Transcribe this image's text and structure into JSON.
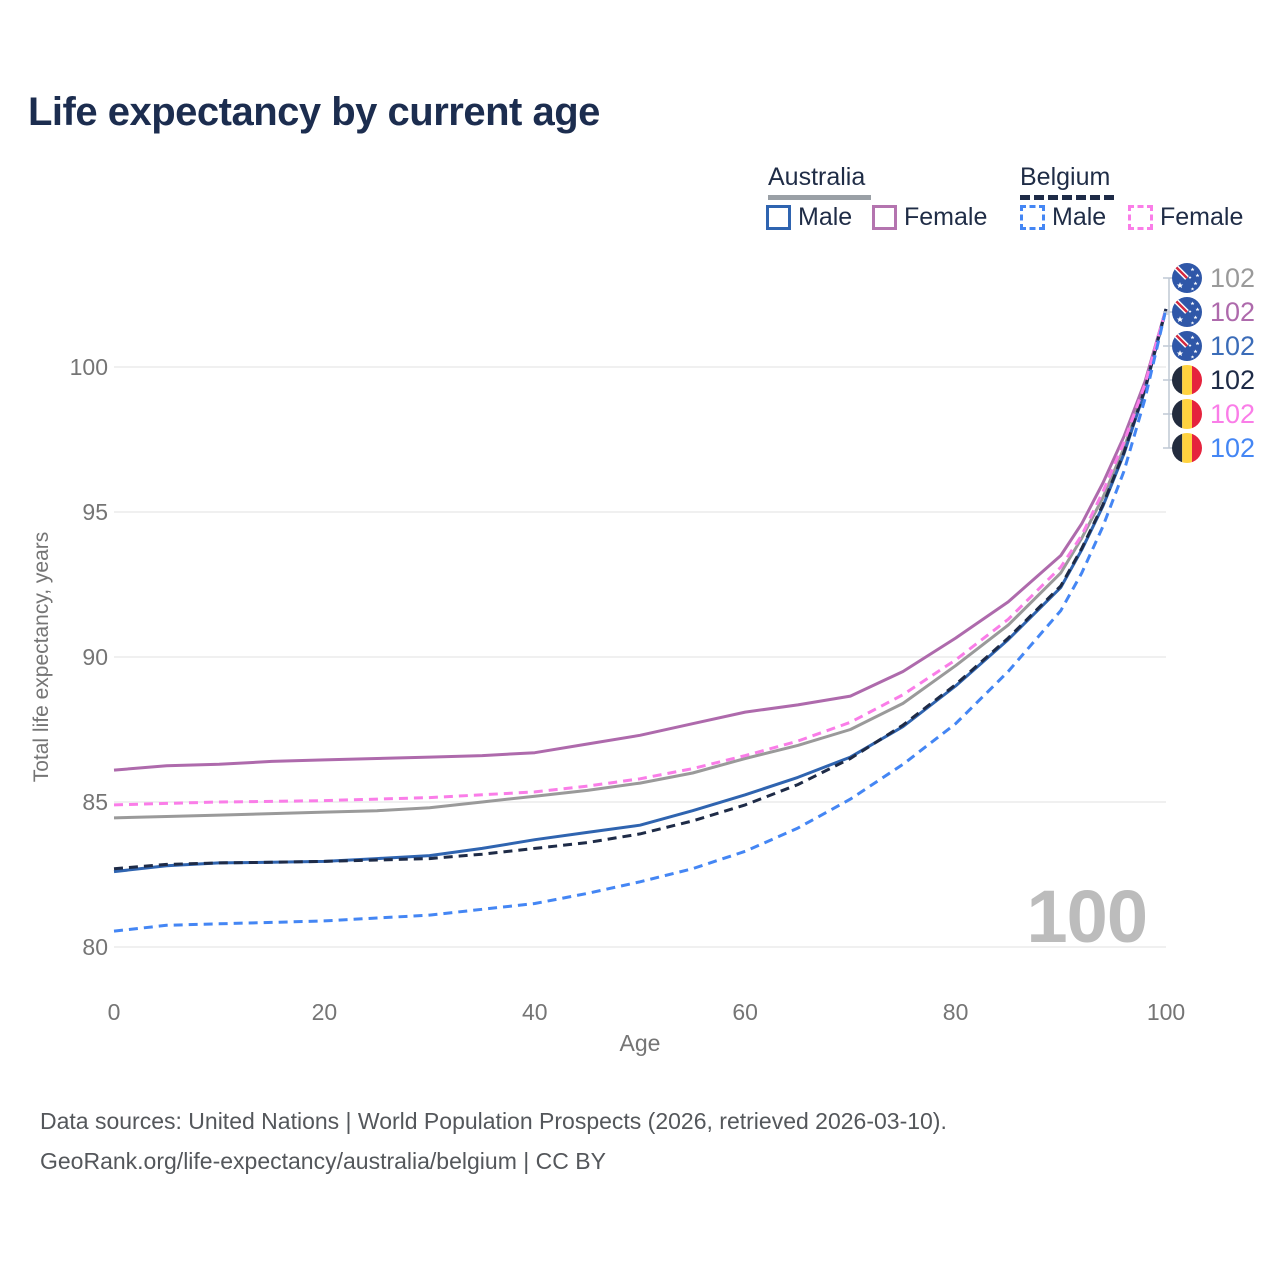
{
  "title": "Life expectancy by current age",
  "legend": {
    "groups": [
      {
        "label": "Australia",
        "line_style": "solid",
        "underline_color": "#9aa0a6",
        "items": [
          {
            "label": "Male",
            "color": "#2f64b0",
            "dash": false
          },
          {
            "label": "Female",
            "color": "#b474af",
            "dash": false
          }
        ]
      },
      {
        "label": "Belgium",
        "line_style": "dashed",
        "underline_color": "#1e2b47",
        "items": [
          {
            "label": "Male",
            "color": "#4486f4",
            "dash": true
          },
          {
            "label": "Female",
            "color": "#fa7de8",
            "dash": true
          }
        ]
      }
    ]
  },
  "end_labels": [
    {
      "flag": "australia",
      "value": "102",
      "color": "#9a9a9a"
    },
    {
      "flag": "australia",
      "value": "102",
      "color": "#ae6aac"
    },
    {
      "flag": "australia",
      "value": "102",
      "color": "#3b6cb8"
    },
    {
      "flag": "belgium",
      "value": "102",
      "color": "#1e2b47"
    },
    {
      "flag": "belgium",
      "value": "102",
      "color": "#fa7de8"
    },
    {
      "flag": "belgium",
      "value": "102",
      "color": "#4486f4"
    }
  ],
  "watermark": "100",
  "footer_lines": [
    "Data sources: United Nations | World Population Prospects (2026, retrieved 2026-03-10).",
    "GeoRank.org/life-expectancy/australia/belgium | CC BY"
  ],
  "chart_data": {
    "type": "line",
    "title": "Life expectancy by current age",
    "xlabel": "Age",
    "ylabel": "Total life expectancy, years",
    "x_ticks": [
      0,
      20,
      40,
      60,
      80,
      100
    ],
    "y_ticks": [
      80,
      85,
      90,
      95,
      100
    ],
    "xlim": [
      0,
      100
    ],
    "ylim": [
      79.5,
      102.5
    ],
    "grid": "horizontal",
    "legend_position": "top-right",
    "x": [
      0,
      5,
      10,
      15,
      20,
      25,
      30,
      35,
      40,
      45,
      50,
      55,
      60,
      65,
      70,
      75,
      80,
      85,
      90,
      92,
      94,
      96,
      98,
      100
    ],
    "series": [
      {
        "name": "Australia Both sexes",
        "country": "australia",
        "sex": "both",
        "color": "#9a9a9a",
        "dash": false,
        "values": [
          84.45,
          84.5,
          84.55,
          84.6,
          84.65,
          84.7,
          84.8,
          85.0,
          85.2,
          85.4,
          85.65,
          86.0,
          86.5,
          86.95,
          87.5,
          88.4,
          89.7,
          91.1,
          92.9,
          94.1,
          95.5,
          97.2,
          99.3,
          102
        ]
      },
      {
        "name": "Australia Female",
        "country": "australia",
        "sex": "female",
        "color": "#ae6aac",
        "dash": false,
        "values": [
          86.1,
          86.25,
          86.3,
          86.4,
          86.45,
          86.5,
          86.55,
          86.6,
          86.7,
          87.0,
          87.3,
          87.7,
          88.1,
          88.35,
          88.65,
          89.5,
          90.65,
          91.9,
          93.5,
          94.6,
          96.0,
          97.6,
          99.5,
          102
        ]
      },
      {
        "name": "Australia Male",
        "country": "australia",
        "sex": "male",
        "color": "#2f64b0",
        "dash": false,
        "values": [
          82.6,
          82.8,
          82.9,
          82.92,
          82.95,
          83.05,
          83.15,
          83.4,
          83.7,
          83.95,
          84.2,
          84.7,
          85.25,
          85.85,
          86.55,
          87.6,
          89.0,
          90.6,
          92.4,
          93.7,
          95.2,
          97.0,
          99.2,
          102
        ]
      },
      {
        "name": "Belgium Both sexes",
        "country": "belgium",
        "sex": "both",
        "color": "#1e2b47",
        "dash": true,
        "values": [
          82.7,
          82.85,
          82.9,
          82.92,
          82.95,
          83.0,
          83.05,
          83.2,
          83.4,
          83.6,
          83.9,
          84.35,
          84.9,
          85.6,
          86.5,
          87.65,
          89.05,
          90.65,
          92.45,
          93.75,
          95.25,
          97.05,
          99.25,
          102
        ]
      },
      {
        "name": "Belgium Female",
        "country": "belgium",
        "sex": "female",
        "color": "#fa7de8",
        "dash": true,
        "values": [
          84.9,
          84.95,
          85.0,
          85.02,
          85.05,
          85.1,
          85.15,
          85.25,
          85.35,
          85.55,
          85.8,
          86.15,
          86.6,
          87.1,
          87.75,
          88.7,
          89.9,
          91.3,
          93.1,
          94.2,
          95.7,
          97.4,
          99.4,
          102
        ]
      },
      {
        "name": "Belgium Male",
        "country": "belgium",
        "sex": "male",
        "color": "#4486f4",
        "dash": true,
        "values": [
          80.55,
          80.75,
          80.8,
          80.85,
          80.9,
          81.0,
          81.1,
          81.3,
          81.5,
          81.85,
          82.25,
          82.7,
          83.3,
          84.1,
          85.1,
          86.3,
          87.7,
          89.5,
          91.6,
          92.9,
          94.5,
          96.4,
          98.9,
          102
        ]
      }
    ]
  }
}
